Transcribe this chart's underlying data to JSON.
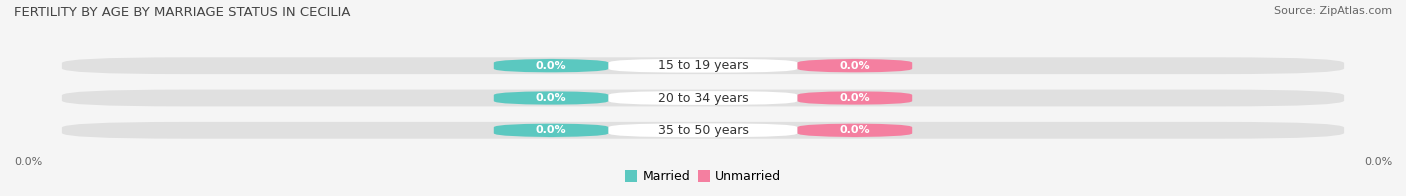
{
  "title": "FERTILITY BY AGE BY MARRIAGE STATUS IN CECILIA",
  "source": "Source: ZipAtlas.com",
  "categories": [
    "15 to 19 years",
    "20 to 34 years",
    "35 to 50 years"
  ],
  "married_values": [
    0.0,
    0.0,
    0.0
  ],
  "unmarried_values": [
    0.0,
    0.0,
    0.0
  ],
  "married_color": "#5bc8c0",
  "unmarried_color": "#f47fa0",
  "bar_bg_color": "#e0e0e0",
  "center_label_bg": "#ffffff",
  "title_fontsize": 9.5,
  "source_fontsize": 8,
  "value_fontsize": 8,
  "category_fontsize": 9,
  "tick_fontsize": 8,
  "legend_fontsize": 9,
  "background_color": "#f5f5f5",
  "xlim_left": -1.0,
  "xlim_right": 1.0
}
